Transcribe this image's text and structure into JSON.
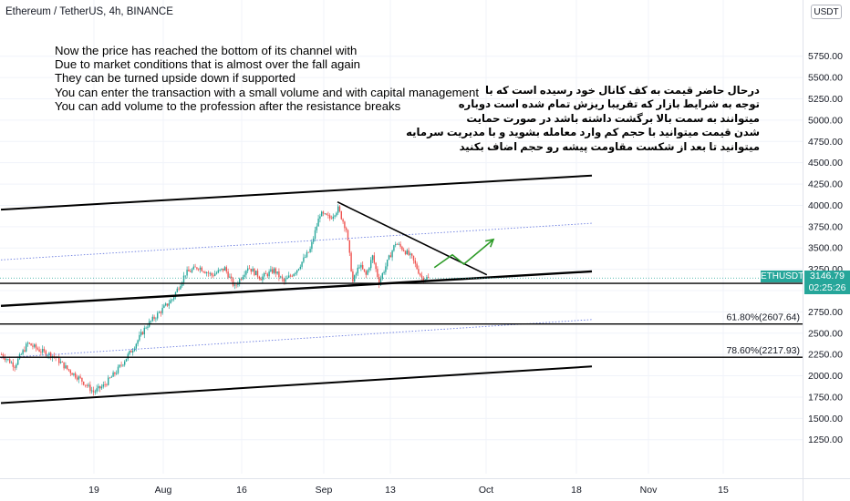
{
  "header": {
    "symbol_title": "Ethereum / TetherUS, 4h, BINANCE"
  },
  "currency_badge": "USDT",
  "last_price": {
    "symbol": "ETHUSDT",
    "value": "3146.79",
    "countdown": "02:25:26"
  },
  "notes": {
    "english": [
      "Now the price has reached the bottom of its channel with",
      "Due to market conditions that is almost over the fall again",
      "They can be turned upside down if supported",
      "You can enter the transaction with a small volume and with capital management",
      "You can add volume to the profession after the resistance breaks"
    ],
    "persian": [
      "درحال حاضر قیمت به کف کانال خود رسیده است که با",
      "توجه به شرایط بازار که تقریبا ریزش تمام شده است دوباره",
      "میتوانند به سمت بالا برگشت داشته باشد در صورت حمایت",
      "شدن قیمت میتوانید با حجم کم وارد معامله بشوید و با مدیریت سرمایه",
      "میتوانید تا بعد از شکست مقاومت پیشه رو حجم اضاف بکنید"
    ]
  },
  "chart_data": {
    "type": "candlestick",
    "title": "Ethereum / TetherUS, 4h, BINANCE",
    "y_axis": {
      "range": [
        1050,
        5900
      ],
      "ticks": [
        "1250.00",
        "1500.00",
        "1750.00",
        "2000.00",
        "2250.00",
        "2500.00",
        "2750.00",
        "3000.00",
        "3250.00",
        "3500.00",
        "3750.00",
        "4000.00",
        "4250.00",
        "4500.00",
        "4750.00",
        "5000.00",
        "5250.00",
        "5500.00",
        "5750.00"
      ]
    },
    "x_axis": {
      "labels": [
        "19",
        "Aug",
        "16",
        "Sep",
        "13",
        "Oct",
        "18",
        "Nov",
        "15"
      ]
    },
    "fib_levels": [
      {
        "label": "78.60%",
        "price": 3085
      },
      {
        "label": "61.80%(2607.64)",
        "price": 2607.64
      },
      {
        "label": "78.60%(2217.93)",
        "price": 2217.93
      }
    ],
    "price_anchors": [
      [
        0,
        2250
      ],
      [
        8,
        2120
      ],
      [
        16,
        2380
      ],
      [
        24,
        2290
      ],
      [
        32,
        2230
      ],
      [
        40,
        2080
      ],
      [
        48,
        1960
      ],
      [
        56,
        1810
      ],
      [
        62,
        1880
      ],
      [
        70,
        2050
      ],
      [
        80,
        2320
      ],
      [
        88,
        2580
      ],
      [
        96,
        2740
      ],
      [
        104,
        2900
      ],
      [
        112,
        3200
      ],
      [
        120,
        3280
      ],
      [
        128,
        3180
      ],
      [
        136,
        3260
      ],
      [
        142,
        3040
      ],
      [
        150,
        3280
      ],
      [
        158,
        3150
      ],
      [
        166,
        3240
      ],
      [
        172,
        3100
      ],
      [
        180,
        3250
      ],
      [
        188,
        3480
      ],
      [
        194,
        3900
      ],
      [
        200,
        3850
      ],
      [
        205,
        3960
      ],
      [
        210,
        3720
      ],
      [
        214,
        3100
      ],
      [
        218,
        3300
      ],
      [
        222,
        3180
      ],
      [
        226,
        3400
      ],
      [
        230,
        3100
      ],
      [
        236,
        3380
      ],
      [
        240,
        3560
      ],
      [
        245,
        3480
      ],
      [
        250,
        3380
      ],
      [
        256,
        3150
      ],
      [
        260,
        3146.79
      ]
    ],
    "trend_lines": [
      {
        "name": "channel-top",
        "points": [
          [
            0,
            3950
          ],
          [
            360,
            4350
          ]
        ]
      },
      {
        "name": "channel-upper-dotted",
        "points": [
          [
            0,
            3360
          ],
          [
            360,
            3790
          ]
        ]
      },
      {
        "name": "channel-mid-support",
        "points": [
          [
            0,
            2820
          ],
          [
            360,
            3225
          ]
        ]
      },
      {
        "name": "channel-lower-dotted",
        "points": [
          [
            0,
            2210
          ],
          [
            360,
            2660
          ]
        ]
      },
      {
        "name": "channel-bottom",
        "points": [
          [
            0,
            1680
          ],
          [
            360,
            2110
          ]
        ]
      },
      {
        "name": "descending-resistance",
        "points": [
          [
            205,
            4040
          ],
          [
            296,
            3185
          ]
        ]
      }
    ],
    "projection_arrow": {
      "points": [
        [
          264,
          3270
        ],
        [
          275,
          3420
        ],
        [
          282,
          3310
        ],
        [
          300,
          3600
        ]
      ]
    },
    "colors": {
      "up": "#26a69a",
      "down": "#ef5350",
      "arrow": "#2e9b28",
      "dotted": "#6c7ee0",
      "last": "#26a69a"
    }
  }
}
